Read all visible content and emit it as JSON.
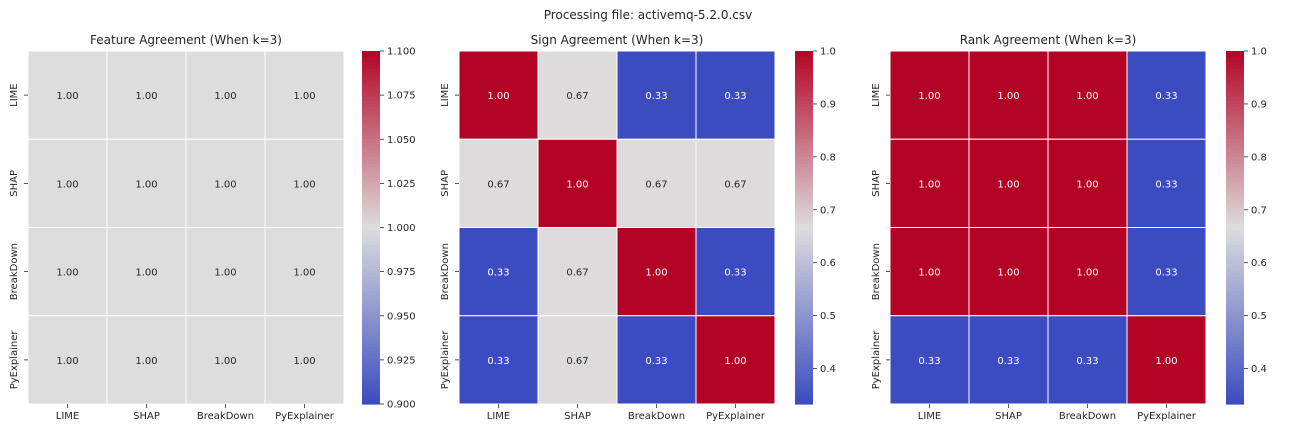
{
  "suptitle": "Processing file: activemq-5.2.0.csv",
  "colors": {
    "low": "#3b4cc0",
    "mid": "#dddddd",
    "high": "#b40426",
    "grid": "#ffffff"
  },
  "chart_data": [
    {
      "type": "heatmap",
      "title": "Feature Agreement (When k=3)",
      "row_labels": [
        "LIME",
        "SHAP",
        "BreakDown",
        "PyExplainer"
      ],
      "col_labels": [
        "LIME",
        "SHAP",
        "BreakDown",
        "PyExplainer"
      ],
      "values": [
        [
          1.0,
          1.0,
          1.0,
          1.0
        ],
        [
          1.0,
          1.0,
          1.0,
          1.0
        ],
        [
          1.0,
          1.0,
          1.0,
          1.0
        ],
        [
          1.0,
          1.0,
          1.0,
          1.0
        ]
      ],
      "annotations": [
        [
          "1.00",
          "1.00",
          "1.00",
          "1.00"
        ],
        [
          "1.00",
          "1.00",
          "1.00",
          "1.00"
        ],
        [
          "1.00",
          "1.00",
          "1.00",
          "1.00"
        ],
        [
          "1.00",
          "1.00",
          "1.00",
          "1.00"
        ]
      ],
      "colormap": "coolwarm",
      "vmin": 0.9,
      "vmax": 1.1,
      "colorbar_ticks": [
        0.9,
        0.925,
        0.95,
        0.975,
        1.0,
        1.025,
        1.05,
        1.075,
        1.1
      ],
      "colorbar_tick_labels": [
        "0.900",
        "0.925",
        "0.950",
        "0.975",
        "1.000",
        "1.025",
        "1.050",
        "1.075",
        "1.100"
      ]
    },
    {
      "type": "heatmap",
      "title": "Sign Agreement (When k=3)",
      "row_labels": [
        "LIME",
        "SHAP",
        "BreakDown",
        "PyExplainer"
      ],
      "col_labels": [
        "LIME",
        "SHAP",
        "BreakDown",
        "PyExplainer"
      ],
      "values": [
        [
          1.0,
          0.67,
          0.33,
          0.33
        ],
        [
          0.67,
          1.0,
          0.67,
          0.67
        ],
        [
          0.33,
          0.67,
          1.0,
          0.33
        ],
        [
          0.33,
          0.67,
          0.33,
          1.0
        ]
      ],
      "annotations": [
        [
          "1.00",
          "0.67",
          "0.33",
          "0.33"
        ],
        [
          "0.67",
          "1.00",
          "0.67",
          "0.67"
        ],
        [
          "0.33",
          "0.67",
          "1.00",
          "0.33"
        ],
        [
          "0.33",
          "0.67",
          "0.33",
          "1.00"
        ]
      ],
      "colormap": "coolwarm",
      "vmin": 0.333,
      "vmax": 1.0,
      "colorbar_ticks": [
        0.4,
        0.5,
        0.6,
        0.7,
        0.8,
        0.9,
        1.0
      ],
      "colorbar_tick_labels": [
        "0.4",
        "0.5",
        "0.6",
        "0.7",
        "0.8",
        "0.9",
        "1.0"
      ]
    },
    {
      "type": "heatmap",
      "title": "Rank Agreement (When k=3)",
      "row_labels": [
        "LIME",
        "SHAP",
        "BreakDown",
        "PyExplainer"
      ],
      "col_labels": [
        "LIME",
        "SHAP",
        "BreakDown",
        "PyExplainer"
      ],
      "values": [
        [
          1.0,
          1.0,
          1.0,
          0.33
        ],
        [
          1.0,
          1.0,
          1.0,
          0.33
        ],
        [
          1.0,
          1.0,
          1.0,
          0.33
        ],
        [
          0.33,
          0.33,
          0.33,
          1.0
        ]
      ],
      "annotations": [
        [
          "1.00",
          "1.00",
          "1.00",
          "0.33"
        ],
        [
          "1.00",
          "1.00",
          "1.00",
          "0.33"
        ],
        [
          "1.00",
          "1.00",
          "1.00",
          "0.33"
        ],
        [
          "0.33",
          "0.33",
          "0.33",
          "1.00"
        ]
      ],
      "colormap": "coolwarm",
      "vmin": 0.333,
      "vmax": 1.0,
      "colorbar_ticks": [
        0.4,
        0.5,
        0.6,
        0.7,
        0.8,
        0.9,
        1.0
      ],
      "colorbar_tick_labels": [
        "0.4",
        "0.5",
        "0.6",
        "0.7",
        "0.8",
        "0.9",
        "1.0"
      ]
    }
  ]
}
